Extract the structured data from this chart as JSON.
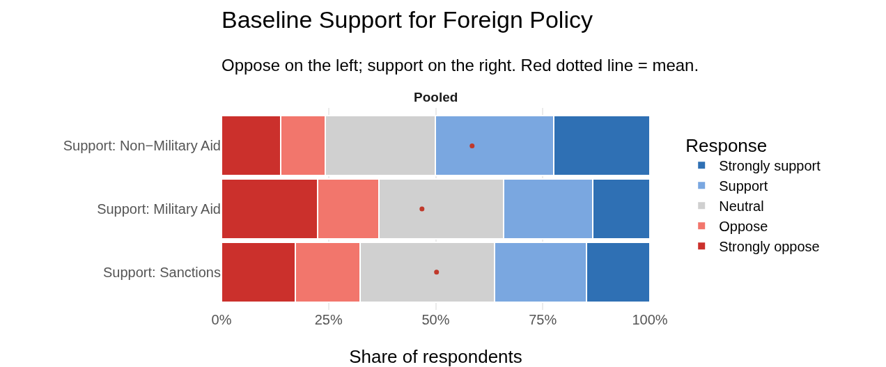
{
  "chart_data": {
    "type": "bar",
    "title": "Baseline Support for Foreign Policy",
    "subtitle": "Oppose on the left; support on the right. Red dotted line = mean.",
    "xlabel": "Share of respondents",
    "legend_title": "Response",
    "annotations": [
      "Pooled"
    ],
    "orientation": "horizontal",
    "stacked": true,
    "categories": [
      "Support: Non−Military Aid",
      "Support: Military Aid",
      "Support: Sanctions"
    ],
    "series": [
      {
        "name": "Strongly oppose",
        "color": "#cb302c",
        "values": [
          13.8,
          22.4,
          17.2
        ]
      },
      {
        "name": "Oppose",
        "color": "#f2766c",
        "values": [
          10.4,
          14.3,
          15.2
        ]
      },
      {
        "name": "Neutral",
        "color": "#d0d0d0",
        "values": [
          25.7,
          29.2,
          31.3
        ]
      },
      {
        "name": "Support",
        "color": "#7aa7e0",
        "values": [
          27.7,
          20.8,
          21.5
        ]
      },
      {
        "name": "Strongly support",
        "color": "#2f70b4",
        "values": [
          22.4,
          13.3,
          14.8
        ]
      },
      {
        "type": "scatter",
        "color": "#c0392b",
        "marker": "circle",
        "values": [
          58.5,
          46.8,
          50.2
        ]
      }
    ],
    "xlim": [
      0,
      100
    ],
    "xticks": [
      {
        "value": 0,
        "label": "0%"
      },
      {
        "value": 25,
        "label": "25%"
      },
      {
        "value": 50,
        "label": "50%"
      },
      {
        "value": 75,
        "label": "75%"
      },
      {
        "value": 100,
        "label": "100%"
      }
    ],
    "grid": true,
    "legend": "right"
  }
}
